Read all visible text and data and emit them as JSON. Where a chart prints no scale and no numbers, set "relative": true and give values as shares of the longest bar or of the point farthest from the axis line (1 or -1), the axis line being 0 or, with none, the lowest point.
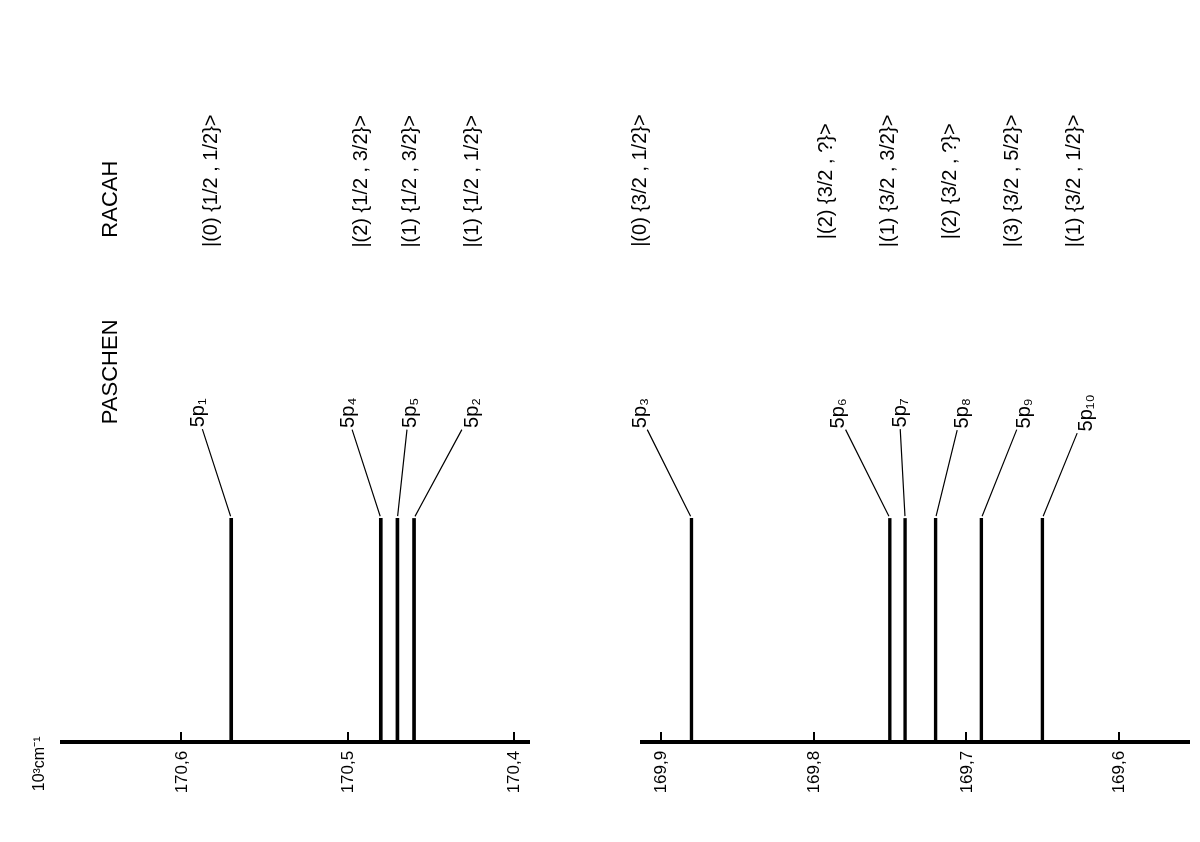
{
  "chart_data": [
    {
      "type": "bar",
      "relative": true,
      "x": [
        170.57,
        170.48,
        170.47,
        170.46
      ],
      "values": [
        1,
        1,
        1,
        1
      ],
      "color": "#000000",
      "xlim": [
        170.673,
        170.39
      ],
      "xticks": [
        {
          "value": 170.6,
          "label": "170,6"
        },
        {
          "value": 170.5,
          "label": "170,5"
        },
        {
          "value": 170.4,
          "label": "170,4"
        }
      ],
      "annotations": [
        "10³cm⁻¹",
        "PASCHEN",
        "RACAH",
        {
          "text": "5p₁",
          "x": 170.57,
          "y": 1
        },
        {
          "text": "5p₄",
          "x": 170.48,
          "y": 1
        },
        {
          "text": "5p₅",
          "x": 170.47,
          "y": 1
        },
        {
          "text": "5p₂",
          "x": 170.46,
          "y": 1
        },
        "|(0) {1/2 , 1/2}>",
        "|(2) {1/2 , 3/2}>",
        "|(1) {1/2 , 3/2}>",
        "|(1) {1/2 , 1/2}>"
      ]
    },
    {
      "type": "bar",
      "relative": true,
      "x": [
        169.88,
        169.75,
        169.74,
        169.72,
        169.69,
        169.65
      ],
      "values": [
        1,
        1,
        1,
        1,
        1,
        1
      ],
      "color": "#000000",
      "xlim": [
        169.914,
        169.553
      ],
      "xticks": [
        {
          "value": 169.9,
          "label": "169,9"
        },
        {
          "value": 169.8,
          "label": "169,8"
        },
        {
          "value": 169.7,
          "label": "169,7"
        },
        {
          "value": 169.6,
          "label": "169,6"
        }
      ],
      "annotations": [
        {
          "text": "5p₃",
          "x": 169.88,
          "y": 1
        },
        {
          "text": "5p₆",
          "x": 169.75,
          "y": 1
        },
        {
          "text": "5p₇",
          "x": 169.74,
          "y": 1
        },
        {
          "text": "5p₈",
          "x": 169.72,
          "y": 1
        },
        {
          "text": "5p₉",
          "x": 169.69,
          "y": 1
        },
        {
          "text": "5p₁₀",
          "x": 169.65,
          "y": 1
        },
        "|(0) {3/2 , 1/2}>",
        "|(2) {3/2 , ?}>",
        "|(1) {3/2 , 3/2}>",
        "|(2) {3/2 , ?}>",
        "|(3) {3/2 , 5/2}>",
        "|(1) {3/2 , 1/2}>"
      ]
    }
  ]
}
